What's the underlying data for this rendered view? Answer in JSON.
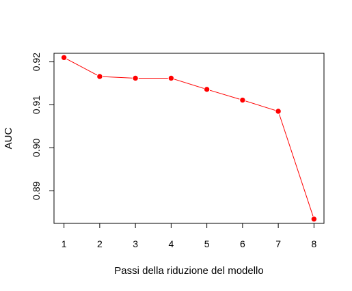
{
  "chart_data": {
    "type": "line",
    "title": "",
    "xlabel": "Passi della riduzione del modello",
    "ylabel": "AUC",
    "x": [
      1,
      2,
      3,
      4,
      5,
      6,
      7,
      8
    ],
    "series": [
      {
        "values": [
          0.921,
          0.9166,
          0.9162,
          0.9162,
          0.9136,
          0.9111,
          0.9085,
          0.8834
        ]
      }
    ],
    "xlim": [
      0.72,
      8.28
    ],
    "ylim": [
      0.8824,
      0.922
    ],
    "xticks": [
      "1",
      "2",
      "3",
      "4",
      "5",
      "6",
      "7",
      "8"
    ],
    "yticks": [
      "0.89",
      "0.90",
      "0.91",
      "0.92"
    ],
    "ytick_values": [
      0.89,
      0.9,
      0.91,
      0.92
    ],
    "grid": false,
    "legend": "none",
    "colors": {
      "line": "#ff0000",
      "marker": "#ff0000",
      "axis": "#000000"
    }
  }
}
